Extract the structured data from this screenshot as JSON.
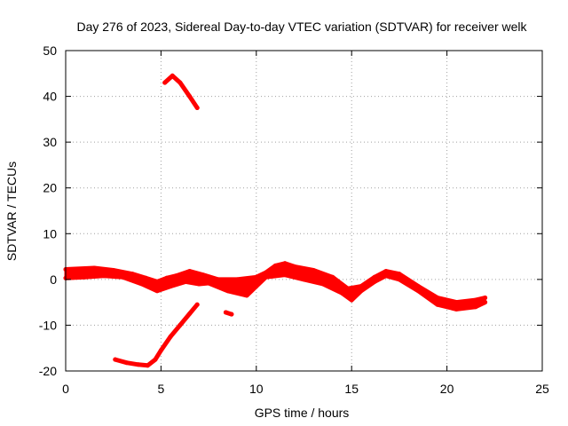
{
  "chart_data": {
    "type": "scatter",
    "title": "Day 276 of 2023, Sidereal Day-to-day VTEC variation (SDTVAR) for receiver welk",
    "xlabel": "GPS time / hours",
    "ylabel": "SDTVAR / TECUs",
    "xlim": [
      0,
      25
    ],
    "ylim": [
      -20,
      50
    ],
    "x_ticks": [
      0,
      5,
      10,
      15,
      20,
      25
    ],
    "x_tick_labels": [
      "0",
      "5",
      "10",
      "15",
      "20",
      "25"
    ],
    "y_ticks": [
      -20,
      -10,
      0,
      10,
      20,
      30,
      40,
      50
    ],
    "y_tick_labels": [
      "-20",
      "-10",
      "0",
      "10",
      "20",
      "30",
      "40",
      "50"
    ],
    "grid": true,
    "color": "#ff0000",
    "series": [
      {
        "name": "main-band-upper",
        "points": [
          [
            0,
            2.2
          ],
          [
            1.5,
            2.5
          ],
          [
            2.5,
            2.0
          ],
          [
            3.5,
            1.2
          ],
          [
            4.2,
            0.3
          ],
          [
            4.8,
            -0.5
          ],
          [
            5.3,
            0.3
          ],
          [
            5.8,
            0.8
          ],
          [
            6.5,
            1.8
          ],
          [
            7.2,
            1.0
          ],
          [
            8.0,
            0.0
          ],
          [
            9.0,
            0.0
          ],
          [
            10.0,
            0.5
          ],
          [
            10.5,
            1.5
          ],
          [
            11.0,
            3.0
          ],
          [
            11.5,
            3.5
          ],
          [
            12.0,
            2.8
          ],
          [
            13.0,
            2.0
          ],
          [
            14.0,
            0.5
          ],
          [
            14.8,
            -2.0
          ],
          [
            15.5,
            -1.5
          ],
          [
            16.2,
            0.5
          ],
          [
            16.8,
            1.8
          ],
          [
            17.5,
            1.2
          ],
          [
            18.5,
            -1.5
          ],
          [
            19.5,
            -4.0
          ],
          [
            20.5,
            -5.0
          ],
          [
            21.5,
            -4.5
          ],
          [
            22.0,
            -4.0
          ]
        ]
      },
      {
        "name": "main-band-lower",
        "points": [
          [
            0,
            0.3
          ],
          [
            1.0,
            0.5
          ],
          [
            2.0,
            0.8
          ],
          [
            3.0,
            0.5
          ],
          [
            4.0,
            -1.0
          ],
          [
            4.8,
            -2.5
          ],
          [
            5.5,
            -1.5
          ],
          [
            6.3,
            -0.5
          ],
          [
            7.0,
            -1.0
          ],
          [
            7.5,
            -0.8
          ],
          [
            8.5,
            -2.5
          ],
          [
            9.5,
            -3.5
          ],
          [
            10.0,
            -1.5
          ],
          [
            10.5,
            0.5
          ],
          [
            11.5,
            1.0
          ],
          [
            12.5,
            0.0
          ],
          [
            13.5,
            -1.0
          ],
          [
            14.5,
            -3.0
          ],
          [
            15.0,
            -4.5
          ],
          [
            15.5,
            -2.5
          ],
          [
            16.2,
            -0.5
          ],
          [
            16.8,
            0.8
          ],
          [
            17.5,
            0.0
          ],
          [
            18.5,
            -2.5
          ],
          [
            19.5,
            -5.5
          ],
          [
            20.5,
            -6.5
          ],
          [
            21.5,
            -6.0
          ],
          [
            22.0,
            -5.0
          ]
        ]
      },
      {
        "name": "upper-arc",
        "points": [
          [
            5.2,
            43.0
          ],
          [
            5.6,
            44.5
          ],
          [
            6.0,
            43.0
          ],
          [
            6.5,
            40.0
          ],
          [
            6.9,
            37.5
          ]
        ]
      },
      {
        "name": "lower-curve",
        "points": [
          [
            2.6,
            -17.5
          ],
          [
            3.2,
            -18.2
          ],
          [
            3.8,
            -18.6
          ],
          [
            4.3,
            -18.8
          ],
          [
            4.7,
            -17.5
          ],
          [
            5.0,
            -15.5
          ],
          [
            5.5,
            -12.5
          ],
          [
            6.0,
            -10.0
          ],
          [
            6.5,
            -7.5
          ],
          [
            6.9,
            -5.5
          ]
        ]
      },
      {
        "name": "isolated-cluster",
        "points": [
          [
            8.4,
            -7.2
          ],
          [
            8.7,
            -7.6
          ]
        ]
      }
    ]
  }
}
